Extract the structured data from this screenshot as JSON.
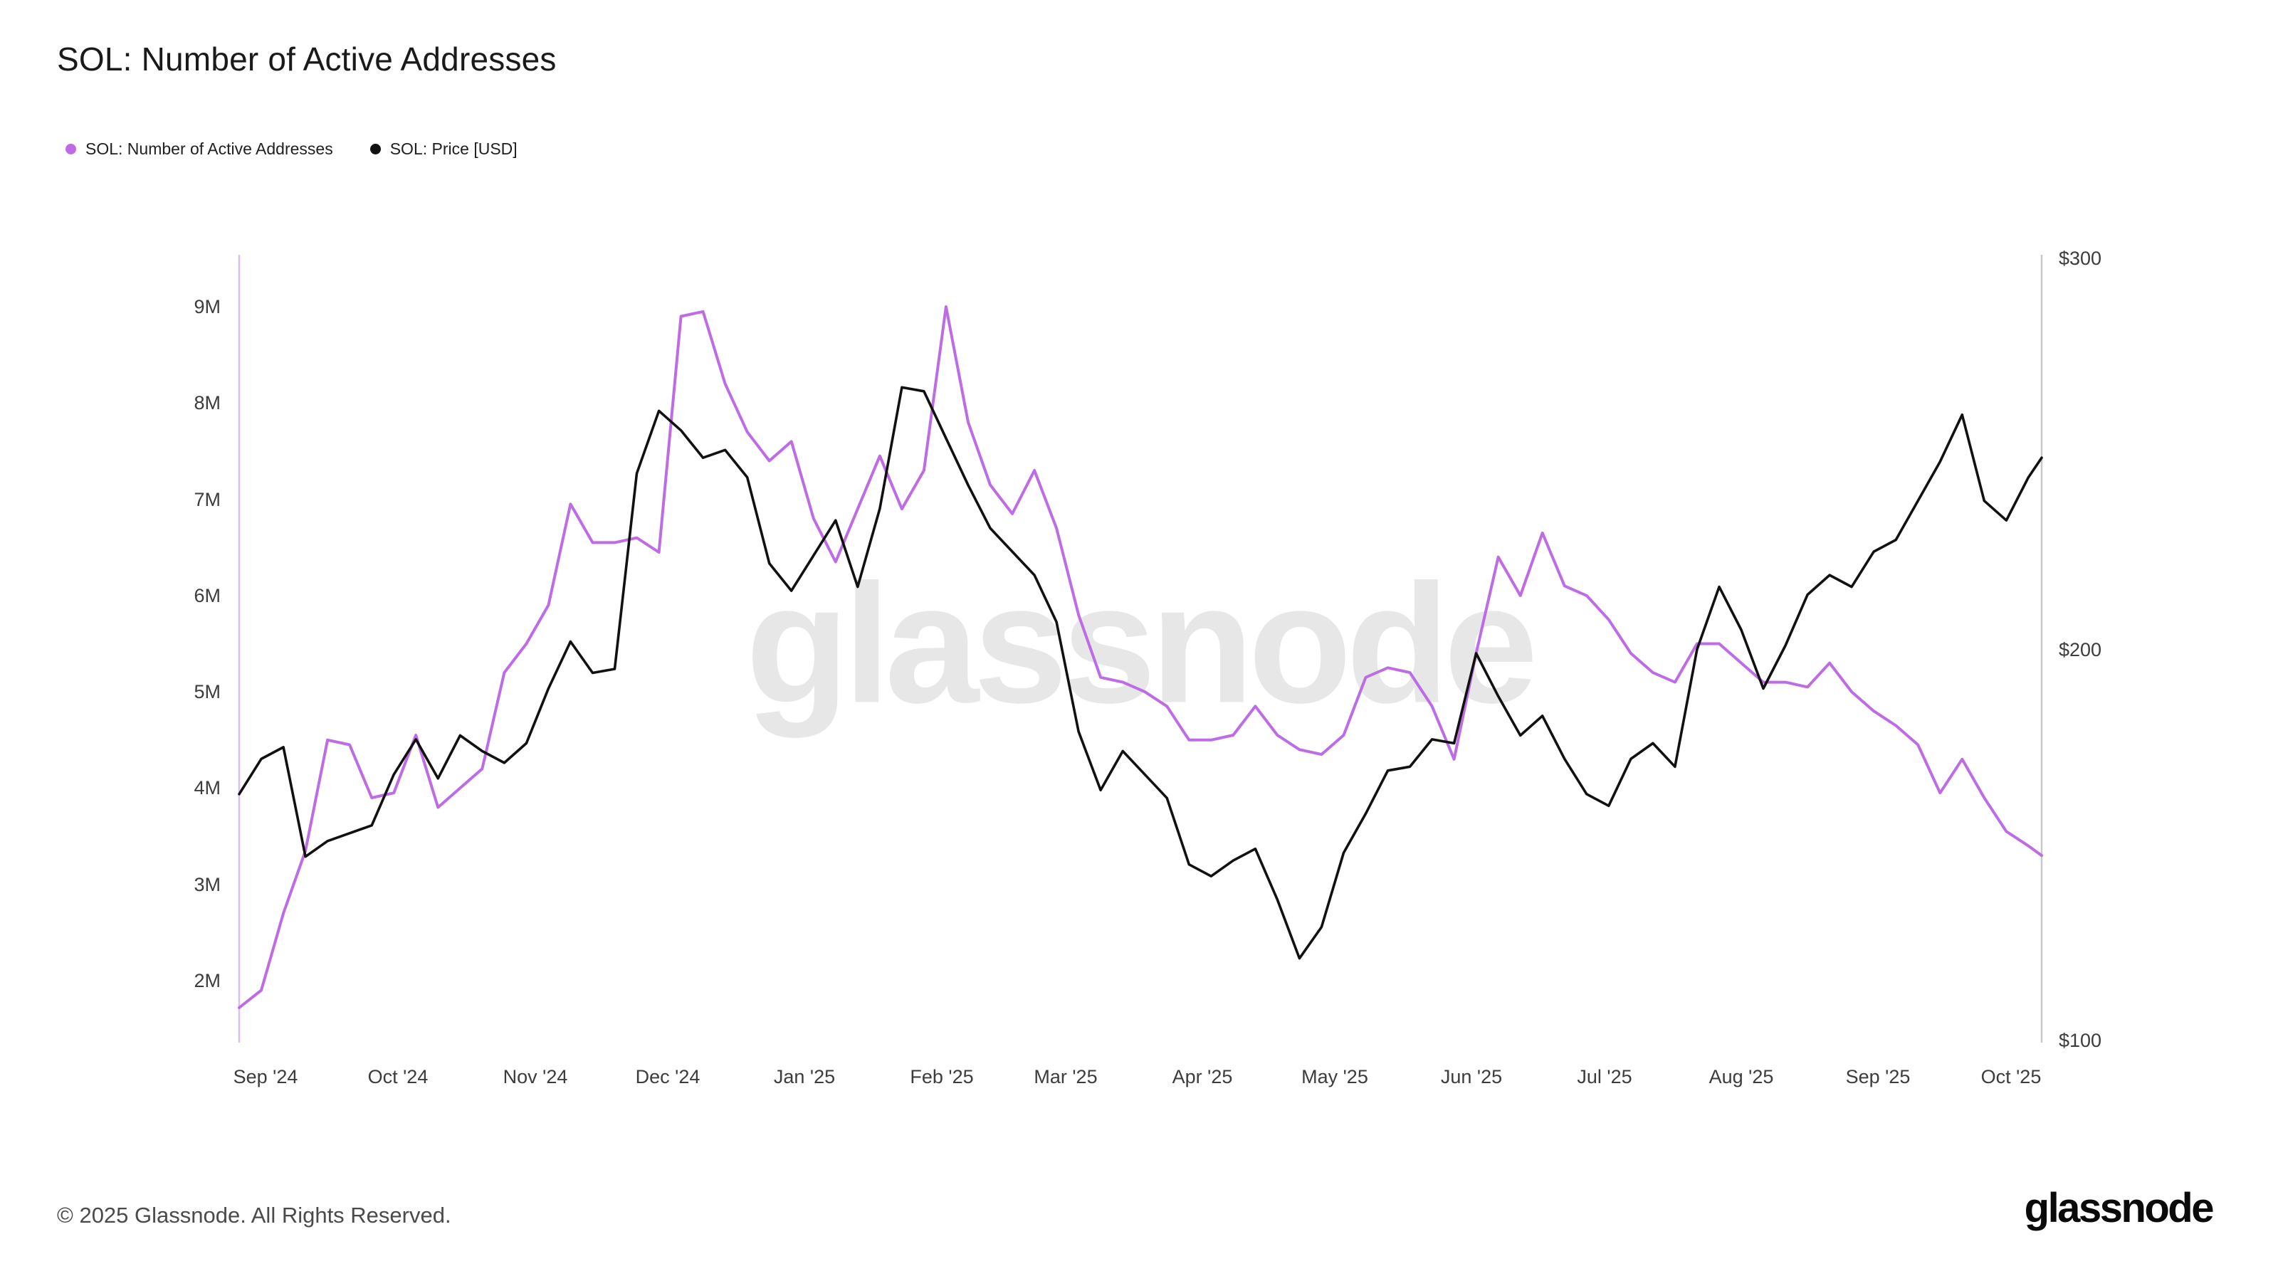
{
  "title": "SOL: Number of Active Addresses",
  "legend": [
    {
      "label": "SOL: Number of Active Addresses",
      "color": "#bd6ce5"
    },
    {
      "label": "SOL: Price [USD]",
      "color": "#111111"
    }
  ],
  "watermark": "glassnode",
  "footer": {
    "copyright": "© 2025 Glassnode. All Rights Reserved.",
    "logo": "glassnode"
  },
  "theme": {
    "addresses_line": "#bd6ce5",
    "price_line": "#111111",
    "left_axis_line": "#ddc0f0",
    "right_axis_line": "#c8c8c8",
    "background": "#ffffff"
  },
  "chart_data": {
    "type": "line",
    "title": "SOL: Number of Active Addresses",
    "grid": false,
    "legend_position": "top-left",
    "x": [
      "2024-08-26",
      "2024-08-31",
      "2024-09-05",
      "2024-09-10",
      "2024-09-15",
      "2024-09-20",
      "2024-09-25",
      "2024-09-30",
      "2024-10-05",
      "2024-10-10",
      "2024-10-15",
      "2024-10-20",
      "2024-10-25",
      "2024-10-30",
      "2024-11-04",
      "2024-11-09",
      "2024-11-14",
      "2024-11-19",
      "2024-11-24",
      "2024-11-29",
      "2024-12-04",
      "2024-12-09",
      "2024-12-14",
      "2024-12-19",
      "2024-12-24",
      "2024-12-29",
      "2025-01-03",
      "2025-01-08",
      "2025-01-13",
      "2025-01-18",
      "2025-01-23",
      "2025-01-28",
      "2025-02-02",
      "2025-02-07",
      "2025-02-12",
      "2025-02-17",
      "2025-02-22",
      "2025-02-27",
      "2025-03-04",
      "2025-03-09",
      "2025-03-14",
      "2025-03-19",
      "2025-03-24",
      "2025-03-29",
      "2025-04-03",
      "2025-04-08",
      "2025-04-13",
      "2025-04-18",
      "2025-04-23",
      "2025-04-28",
      "2025-05-03",
      "2025-05-08",
      "2025-05-13",
      "2025-05-18",
      "2025-05-23",
      "2025-05-28",
      "2025-06-02",
      "2025-06-07",
      "2025-06-12",
      "2025-06-17",
      "2025-06-22",
      "2025-06-27",
      "2025-07-02",
      "2025-07-07",
      "2025-07-12",
      "2025-07-17",
      "2025-07-22",
      "2025-07-27",
      "2025-08-01",
      "2025-08-06",
      "2025-08-11",
      "2025-08-16",
      "2025-08-21",
      "2025-08-26",
      "2025-08-31",
      "2025-09-05",
      "2025-09-10",
      "2025-09-15",
      "2025-09-20",
      "2025-09-25",
      "2025-09-30",
      "2025-10-05",
      "2025-10-08"
    ],
    "series": [
      {
        "name": "SOL: Number of Active Addresses",
        "axis": "left",
        "unit": "millions of addresses",
        "color": "#bd6ce5",
        "values": [
          1.72,
          1.9,
          2.7,
          3.35,
          4.5,
          4.45,
          3.9,
          3.95,
          4.55,
          3.8,
          4.0,
          4.2,
          5.2,
          5.5,
          5.9,
          6.95,
          6.55,
          6.55,
          6.6,
          6.45,
          8.9,
          8.95,
          8.2,
          7.7,
          7.4,
          7.6,
          6.8,
          6.35,
          6.9,
          7.45,
          6.9,
          7.3,
          9.0,
          7.8,
          7.15,
          6.85,
          7.3,
          6.7,
          5.8,
          5.15,
          5.1,
          5.0,
          4.85,
          4.5,
          4.5,
          4.55,
          4.85,
          4.55,
          4.4,
          4.35,
          4.55,
          5.15,
          5.25,
          5.2,
          4.85,
          4.3,
          5.4,
          6.4,
          6.0,
          6.65,
          6.1,
          6.0,
          5.75,
          5.4,
          5.2,
          5.1,
          5.5,
          5.5,
          5.3,
          5.1,
          5.1,
          5.05,
          5.3,
          5.0,
          4.8,
          4.65,
          4.45,
          3.95,
          4.3,
          3.9,
          3.55,
          3.4,
          3.3
        ]
      },
      {
        "name": "SOL: Price [USD]",
        "axis": "right",
        "unit": "USD",
        "color": "#111111",
        "values": [
          163,
          172,
          175,
          147,
          151,
          153,
          155,
          168,
          177,
          167,
          178,
          174,
          171,
          176,
          190,
          202,
          194,
          195,
          245,
          261,
          256,
          249,
          251,
          244,
          222,
          215,
          224,
          233,
          216,
          236,
          267,
          266,
          254,
          242,
          231,
          225,
          219,
          207,
          179,
          164,
          174,
          168,
          162,
          145,
          142,
          146,
          149,
          136,
          121,
          129,
          148,
          158,
          169,
          170,
          177,
          176,
          199,
          188,
          178,
          183,
          172,
          163,
          160,
          172,
          176,
          170,
          200,
          216,
          205,
          190,
          201,
          214,
          219,
          216,
          225,
          228,
          238,
          248,
          260,
          238,
          233,
          244,
          249
        ]
      }
    ],
    "left_axis": {
      "unit": "millions of active addresses",
      "tick_values": [
        2,
        3,
        4,
        5,
        6,
        7,
        8,
        9
      ],
      "tick_labels": [
        "2M",
        "3M",
        "4M",
        "5M",
        "6M",
        "7M",
        "8M",
        "9M"
      ],
      "range": [
        2,
        9
      ]
    },
    "right_axis": {
      "unit": "USD",
      "tick_values": [
        100,
        200,
        300
      ],
      "tick_labels": [
        "$100",
        "$200",
        "$300"
      ],
      "range": [
        100,
        300
      ]
    },
    "x_ticks": [
      {
        "label": "Sep '24",
        "date": "2024-09-01"
      },
      {
        "label": "Oct '24",
        "date": "2024-10-01"
      },
      {
        "label": "Nov '24",
        "date": "2024-11-01"
      },
      {
        "label": "Dec '24",
        "date": "2024-12-01"
      },
      {
        "label": "Jan '25",
        "date": "2025-01-01"
      },
      {
        "label": "Feb '25",
        "date": "2025-02-01"
      },
      {
        "label": "Mar '25",
        "date": "2025-03-01"
      },
      {
        "label": "Apr '25",
        "date": "2025-04-01"
      },
      {
        "label": "May '25",
        "date": "2025-05-01"
      },
      {
        "label": "Jun '25",
        "date": "2025-06-01"
      },
      {
        "label": "Jul '25",
        "date": "2025-07-01"
      },
      {
        "label": "Aug '25",
        "date": "2025-08-01"
      },
      {
        "label": "Sep '25",
        "date": "2025-09-01"
      },
      {
        "label": "Oct '25",
        "date": "2025-10-01"
      }
    ]
  }
}
